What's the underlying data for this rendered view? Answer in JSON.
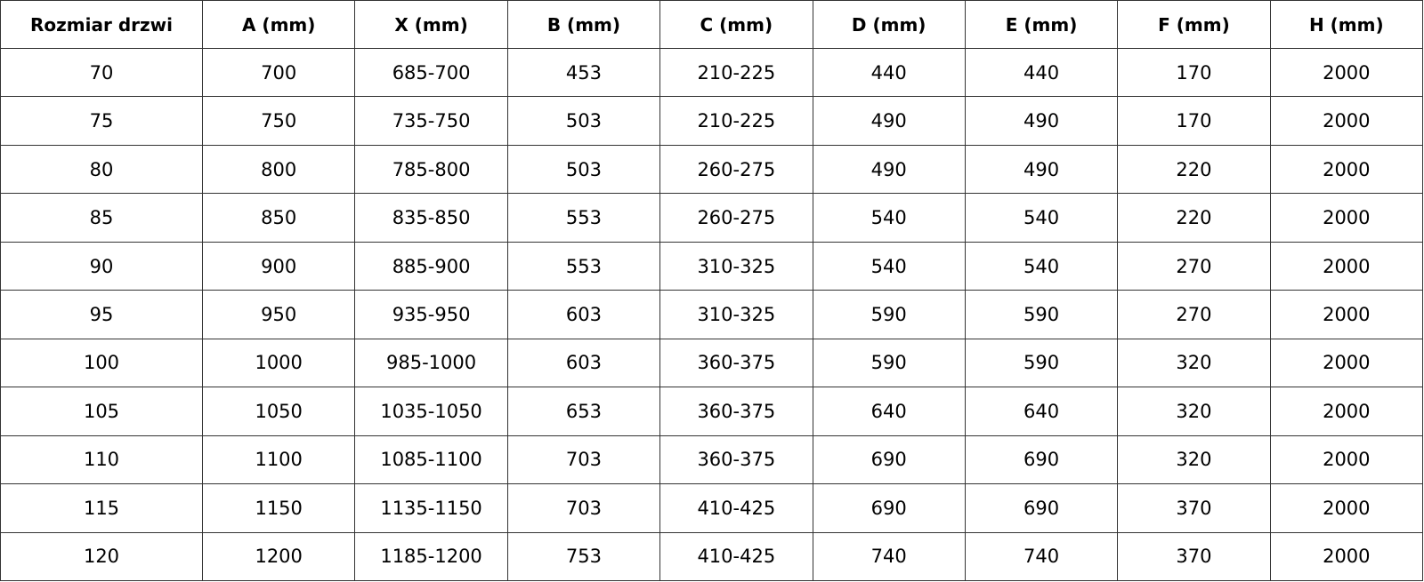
{
  "table": {
    "headers": [
      "Rozmiar drzwi",
      "A (mm)",
      "X (mm)",
      "B (mm)",
      "C (mm)",
      "D (mm)",
      "E (mm)",
      "F (mm)",
      "H (mm)"
    ],
    "rows": [
      [
        "70",
        "700",
        "685-700",
        "453",
        "210-225",
        "440",
        "440",
        "170",
        "2000"
      ],
      [
        "75",
        "750",
        "735-750",
        "503",
        "210-225",
        "490",
        "490",
        "170",
        "2000"
      ],
      [
        "80",
        "800",
        "785-800",
        "503",
        "260-275",
        "490",
        "490",
        "220",
        "2000"
      ],
      [
        "85",
        "850",
        "835-850",
        "553",
        "260-275",
        "540",
        "540",
        "220",
        "2000"
      ],
      [
        "90",
        "900",
        "885-900",
        "553",
        "310-325",
        "540",
        "540",
        "270",
        "2000"
      ],
      [
        "95",
        "950",
        "935-950",
        "603",
        "310-325",
        "590",
        "590",
        "270",
        "2000"
      ],
      [
        "100",
        "1000",
        "985-1000",
        "603",
        "360-375",
        "590",
        "590",
        "320",
        "2000"
      ],
      [
        "105",
        "1050",
        "1035-1050",
        "653",
        "360-375",
        "640",
        "640",
        "320",
        "2000"
      ],
      [
        "110",
        "1100",
        "1085-1100",
        "703",
        "360-375",
        "690",
        "690",
        "320",
        "2000"
      ],
      [
        "115",
        "1150",
        "1135-1150",
        "703",
        "410-425",
        "690",
        "690",
        "370",
        "2000"
      ],
      [
        "120",
        "1200",
        "1185-1200",
        "753",
        "410-425",
        "740",
        "740",
        "370",
        "2000"
      ]
    ]
  }
}
